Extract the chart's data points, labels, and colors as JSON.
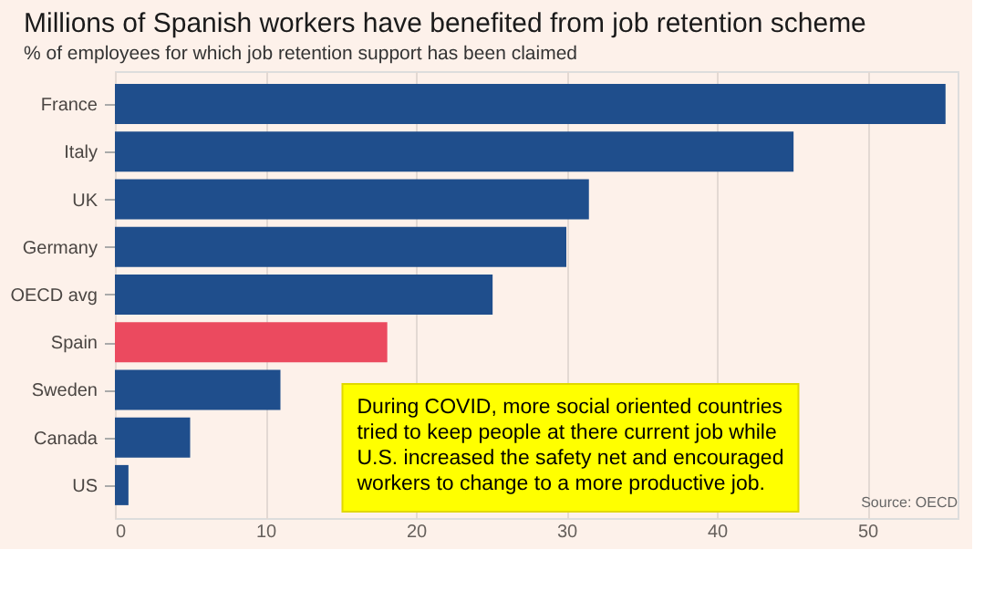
{
  "chart_data": {
    "type": "bar",
    "orientation": "horizontal",
    "title": "Millions of Spanish workers have benefited from job retention scheme",
    "subtitle": "% of employees for which job retention support has been claimed",
    "categories": [
      "France",
      "Italy",
      "UK",
      "Germany",
      "OECD avg",
      "Spain",
      "Sweden",
      "Canada",
      "US"
    ],
    "values": [
      55.2,
      45.1,
      31.5,
      30.0,
      25.1,
      18.1,
      11.0,
      5.0,
      0.9
    ],
    "colors": [
      "#1f4e8c",
      "#1f4e8c",
      "#1f4e8c",
      "#1f4e8c",
      "#1f4e8c",
      "#eb4a5f",
      "#1f4e8c",
      "#1f4e8c",
      "#1f4e8c"
    ],
    "xlim": [
      0,
      56
    ],
    "xticks": [
      0,
      10,
      20,
      30,
      40,
      50
    ],
    "grid": "x",
    "annotations": [
      "During COVID, more social oriented countries tried to keep people at there current job while U.S. increased the safety net and encouraged workers to change to a more productive job.",
      "Source: OECD"
    ]
  }
}
